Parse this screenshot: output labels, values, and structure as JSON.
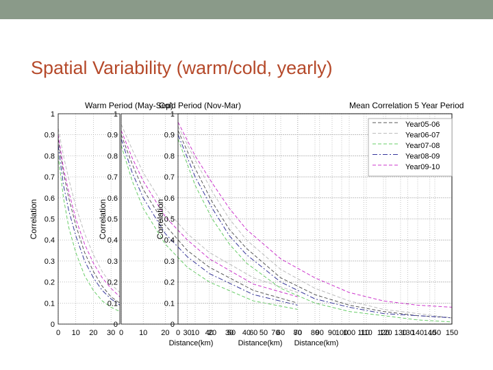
{
  "colors": {
    "top_bar": "#8a9a89",
    "title": "#b5492a",
    "grid": "#999999",
    "axis": "#000000"
  },
  "slide": {
    "title": "Spatial Variability (warm/cold, yearly)"
  },
  "chart_data": [
    {
      "type": "line",
      "title": "Warm Period (May-Sep)",
      "xlabel": "",
      "ylabel": "Correlation",
      "xlim": [
        0,
        35
      ],
      "ylim": [
        0,
        1
      ],
      "xticks": [
        0,
        10,
        20,
        30
      ],
      "yticks": [
        0,
        0.1,
        0.2,
        0.3,
        0.4,
        0.5,
        0.6,
        0.7,
        0.8,
        0.9,
        1
      ],
      "grid": true,
      "series": [
        {
          "color": "#555555",
          "style": "dash",
          "x": [
            0,
            3,
            6,
            10,
            15,
            20,
            25,
            30,
            35
          ],
          "y": [
            0.88,
            0.72,
            0.6,
            0.47,
            0.34,
            0.25,
            0.18,
            0.13,
            0.1
          ]
        },
        {
          "color": "#bbbbbb",
          "style": "dash",
          "x": [
            0,
            3,
            6,
            10,
            15,
            20,
            25,
            30,
            35
          ],
          "y": [
            0.93,
            0.8,
            0.69,
            0.56,
            0.43,
            0.33,
            0.25,
            0.19,
            0.15
          ]
        },
        {
          "color": "#66cc66",
          "style": "dash",
          "x": [
            0,
            3,
            6,
            10,
            15,
            20,
            25,
            30,
            35
          ],
          "y": [
            0.8,
            0.6,
            0.46,
            0.34,
            0.23,
            0.16,
            0.11,
            0.08,
            0.06
          ]
        },
        {
          "color": "#333399",
          "style": "dashdot",
          "x": [
            0,
            3,
            6,
            10,
            15,
            20,
            25,
            30,
            35
          ],
          "y": [
            0.85,
            0.66,
            0.54,
            0.42,
            0.3,
            0.22,
            0.16,
            0.12,
            0.09
          ]
        },
        {
          "color": "#cc33cc",
          "style": "dash",
          "x": [
            0,
            3,
            6,
            10,
            15,
            20,
            25,
            30,
            35
          ],
          "y": [
            0.9,
            0.74,
            0.63,
            0.5,
            0.38,
            0.29,
            0.22,
            0.17,
            0.13
          ]
        }
      ]
    },
    {
      "type": "line",
      "title": "Cold Period (Nov-Mar)",
      "xlabel": "",
      "ylabel": "Correlation",
      "xlim": [
        0,
        150
      ],
      "ylim": [
        0,
        1
      ],
      "xticks": [
        0,
        10,
        20,
        30,
        40,
        50,
        60,
        70,
        80,
        90,
        100,
        110,
        120,
        130,
        140,
        150
      ],
      "yticks": [
        0,
        0.1,
        0.2,
        0.3,
        0.4,
        0.5,
        0.6,
        0.7,
        0.8,
        0.9,
        1
      ],
      "grid": true,
      "series": [
        {
          "color": "#555555",
          "style": "dash",
          "x": [
            0,
            5,
            10,
            20,
            30,
            40,
            60,
            80
          ],
          "y": [
            0.9,
            0.76,
            0.64,
            0.47,
            0.35,
            0.27,
            0.16,
            0.1
          ]
        },
        {
          "color": "#bbbbbb",
          "style": "dash",
          "x": [
            0,
            5,
            10,
            20,
            30,
            40,
            60,
            80
          ],
          "y": [
            0.95,
            0.83,
            0.72,
            0.55,
            0.43,
            0.34,
            0.22,
            0.15
          ]
        },
        {
          "color": "#66cc66",
          "style": "dash",
          "x": [
            0,
            5,
            10,
            20,
            30,
            40,
            60,
            80
          ],
          "y": [
            0.85,
            0.68,
            0.55,
            0.38,
            0.27,
            0.2,
            0.11,
            0.07
          ]
        },
        {
          "color": "#333399",
          "style": "dashdot",
          "x": [
            0,
            5,
            10,
            20,
            30,
            40,
            60,
            80
          ],
          "y": [
            0.88,
            0.72,
            0.6,
            0.43,
            0.32,
            0.24,
            0.14,
            0.09
          ]
        },
        {
          "color": "#cc33cc",
          "style": "dash",
          "x": [
            0,
            5,
            10,
            20,
            30,
            40,
            60,
            80
          ],
          "y": [
            0.92,
            0.79,
            0.68,
            0.51,
            0.4,
            0.31,
            0.19,
            0.13
          ]
        }
      ]
    },
    {
      "type": "line",
      "title": "Mean Correlation 5 Year Period",
      "xlabel": "",
      "ylabel": "Correlation",
      "xlim": [
        0,
        160
      ],
      "ylim": [
        0,
        1
      ],
      "xticks": [
        0,
        10,
        20,
        30,
        40,
        50,
        60,
        70,
        80,
        90,
        100,
        110,
        120,
        130,
        140,
        150
      ],
      "yticks": [
        0,
        0.1,
        0.2,
        0.3,
        0.4,
        0.5,
        0.6,
        0.7,
        0.8,
        0.9,
        1
      ],
      "grid": true,
      "legend_position": "top-right",
      "series": [
        {
          "name": "Year05-06",
          "color": "#555555",
          "style": "dash",
          "x": [
            0,
            10,
            20,
            30,
            40,
            60,
            80,
            100,
            120,
            140,
            160
          ],
          "y": [
            0.92,
            0.74,
            0.58,
            0.45,
            0.36,
            0.22,
            0.14,
            0.09,
            0.06,
            0.04,
            0.03
          ]
        },
        {
          "name": "Year06-07",
          "color": "#bbbbbb",
          "style": "dash",
          "x": [
            0,
            10,
            20,
            30,
            40,
            60,
            80,
            100,
            120,
            140,
            160
          ],
          "y": [
            0.94,
            0.78,
            0.63,
            0.5,
            0.4,
            0.26,
            0.17,
            0.11,
            0.07,
            0.05,
            0.03
          ]
        },
        {
          "name": "Year07-08",
          "color": "#66cc66",
          "style": "dash",
          "x": [
            0,
            10,
            20,
            30,
            40,
            60,
            80,
            100,
            120,
            140,
            160
          ],
          "y": [
            0.88,
            0.66,
            0.5,
            0.38,
            0.29,
            0.17,
            0.1,
            0.06,
            0.04,
            0.02,
            0.01
          ]
        },
        {
          "name": "Year08-09",
          "color": "#333399",
          "style": "dashdot",
          "x": [
            0,
            10,
            20,
            30,
            40,
            60,
            80,
            100,
            120,
            140,
            160
          ],
          "y": [
            0.9,
            0.7,
            0.55,
            0.42,
            0.33,
            0.2,
            0.12,
            0.08,
            0.05,
            0.04,
            0.03
          ]
        },
        {
          "name": "Year09-10",
          "color": "#cc33cc",
          "style": "dash",
          "x": [
            0,
            10,
            20,
            30,
            40,
            60,
            80,
            100,
            120,
            140,
            160
          ],
          "y": [
            0.96,
            0.8,
            0.67,
            0.55,
            0.45,
            0.31,
            0.22,
            0.15,
            0.11,
            0.09,
            0.08
          ]
        }
      ]
    }
  ],
  "xlabels": [
    "Distance(km)",
    "Distance(km)",
    "Distance(km)"
  ],
  "legend": [
    "Year05-06",
    "Year06-07",
    "Year07-08",
    "Year08-09",
    "Year09-10"
  ]
}
